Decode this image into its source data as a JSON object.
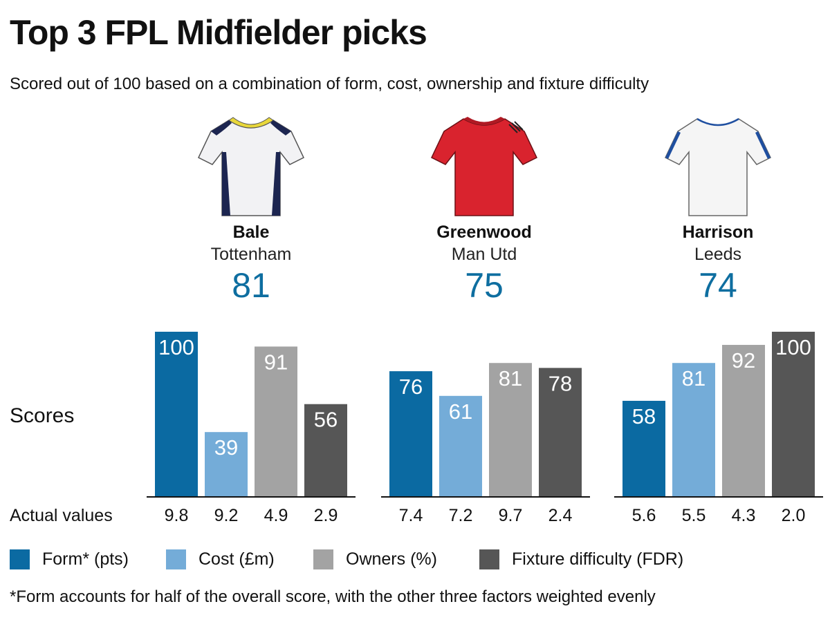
{
  "title": "Top 3 FPL Midfielder picks",
  "subtitle": "Scored out of 100 based on a combination of form, cost, ownership and fixture difficulty",
  "players": [
    {
      "name": "Bale",
      "team": "Tottenham",
      "score": "81",
      "jersey": "tottenham-shirt-icon"
    },
    {
      "name": "Greenwood",
      "team": "Man Utd",
      "score": "75",
      "jersey": "man-utd-shirt-icon"
    },
    {
      "name": "Harrison",
      "team": "Leeds",
      "score": "74",
      "jersey": "leeds-shirt-icon"
    }
  ],
  "labels": {
    "scores": "Scores",
    "actual_values": "Actual values"
  },
  "legend": [
    {
      "label": "Form* (pts)",
      "color": "#0b6aa2"
    },
    {
      "label": "Cost (£m)",
      "color": "#74acd8"
    },
    {
      "label": "Owners (%)",
      "color": "#a3a3a3"
    },
    {
      "label": "Fixture difficulty (FDR)",
      "color": "#565656"
    }
  ],
  "footnote": "*Form accounts for half of the overall score, with the other three factors weighted evenly",
  "chart_data": {
    "type": "bar",
    "ylim": [
      0,
      100
    ],
    "categories": [
      "Form* (pts)",
      "Cost (£m)",
      "Owners (%)",
      "Fixture difficulty (FDR)"
    ],
    "groups": [
      {
        "player": "Bale",
        "scores": [
          100,
          39,
          91,
          56
        ],
        "actual_values": [
          "9.8",
          "9.2",
          "4.9",
          "2.9"
        ]
      },
      {
        "player": "Greenwood",
        "scores": [
          76,
          61,
          81,
          78
        ],
        "actual_values": [
          "7.4",
          "7.2",
          "9.7",
          "2.4"
        ]
      },
      {
        "player": "Harrison",
        "scores": [
          58,
          81,
          92,
          100
        ],
        "actual_values": [
          "5.6",
          "5.5",
          "4.3",
          "2.0"
        ]
      }
    ]
  }
}
